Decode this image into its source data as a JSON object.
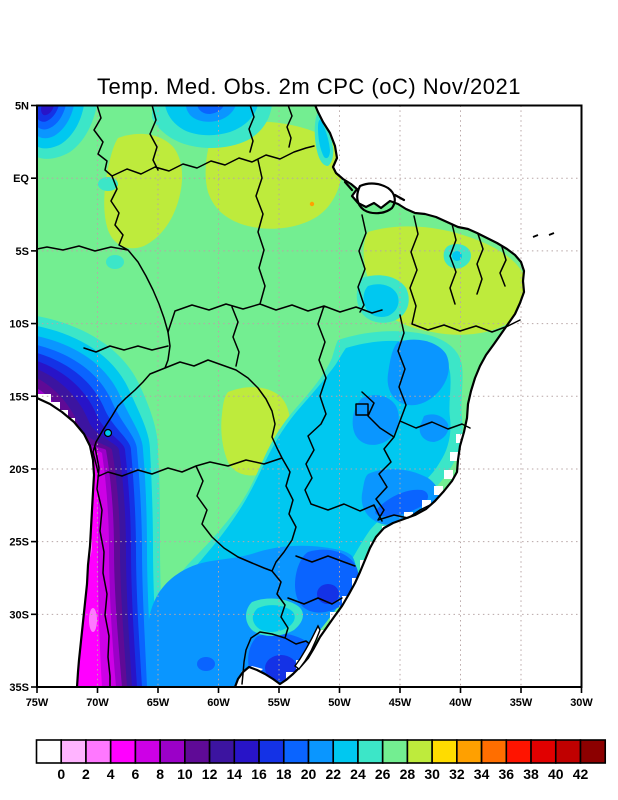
{
  "title": "Temp. Med. Obs. 2m CPC (oC) Nov/2021",
  "map": {
    "lat_labels": [
      "5N",
      "EQ",
      "5S",
      "10S",
      "15S",
      "20S",
      "25S",
      "30S",
      "35S"
    ],
    "lon_labels": [
      "75W",
      "70W",
      "65W",
      "60W",
      "55W",
      "50W",
      "45W",
      "40W",
      "35W",
      "30W"
    ]
  },
  "colorbar": {
    "labels": [
      "0",
      "2",
      "4",
      "6",
      "8",
      "10",
      "12",
      "14",
      "16",
      "18",
      "20",
      "22",
      "24",
      "26",
      "28",
      "30",
      "32",
      "34",
      "36",
      "38",
      "40",
      "42"
    ],
    "colors": [
      "#FFFFFF",
      "#FFB4FF",
      "#FF78FF",
      "#FF00FF",
      "#CD00E6",
      "#9B00C8",
      "#5F0A96",
      "#3C14A0",
      "#2814C8",
      "#1432E6",
      "#0A64FF",
      "#0A96FF",
      "#00C8F0",
      "#3CE6C8",
      "#73EE91",
      "#BEEB3C",
      "#FFDC00",
      "#FFA000",
      "#FF6E00",
      "#FF1400",
      "#E10000",
      "#C00000",
      "#8C0000"
    ]
  },
  "chart_data": {
    "type": "filled_contour_map",
    "title": "Temp. Med. Obs. 2m CPC (oC) Nov/2021",
    "variable": "Observed mean 2m temperature",
    "units": "oC",
    "period": "Nov/2021",
    "source_label": "CPC",
    "lon_range": [
      "75W",
      "30W"
    ],
    "lat_range": [
      "5N",
      "35S"
    ],
    "contour_levels_c": [
      0,
      2,
      4,
      6,
      8,
      10,
      12,
      14,
      16,
      18,
      20,
      22,
      24,
      26,
      28,
      30,
      32,
      34,
      36,
      38,
      40,
      42
    ],
    "grid": "dotted, every 5 degrees",
    "legend_position": "bottom horizontal colorbar",
    "region_readings_c": [
      {
        "region": "NW Amazon / Colombia border",
        "value": "26-28"
      },
      {
        "region": "Central and eastern Amazon",
        "value": "28-30"
      },
      {
        "region": "Guyana highlands (top center)",
        "value": "18-26"
      },
      {
        "region": "Colombian Andes (top-left corner)",
        "value": "14-22"
      },
      {
        "region": "Amapa coast",
        "value": "24-26"
      },
      {
        "region": "Northeast Brazil interior",
        "value": "28-30"
      },
      {
        "region": "NE coastal strip",
        "value": "26-28"
      },
      {
        "region": "Bolivian lowlands (Santa Cruz)",
        "value": "28-30"
      },
      {
        "region": "Minas Gerais highlands",
        "value": "20-22"
      },
      {
        "region": "Sao Paulo / Serra do Mar",
        "value": "18-20"
      },
      {
        "region": "Paraguay / Mato Grosso do Sul",
        "value": "22-26"
      },
      {
        "region": "South Brazil (RS/SC)",
        "value": "16-22"
      },
      {
        "region": "Uruguay",
        "value": "20-24"
      },
      {
        "region": "Andes slope (Peru/Bolivia/NW Argentina)",
        "value": "8-16"
      },
      {
        "region": "High Andes crest",
        "value": "0-8"
      }
    ]
  }
}
